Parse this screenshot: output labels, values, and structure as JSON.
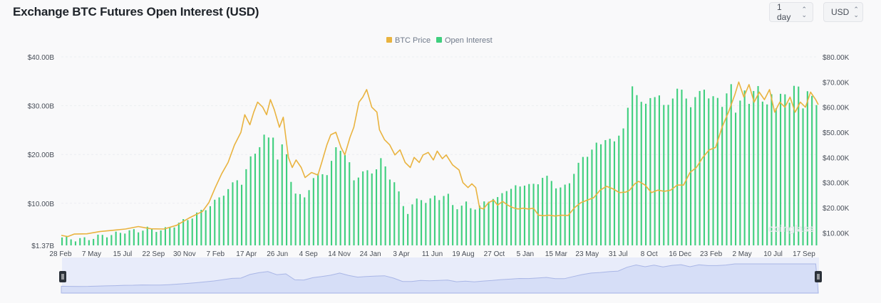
{
  "header": {
    "title": "Exchange BTC Futures Open Interest (USD)",
    "interval_select": "1 day",
    "unit_select": "USD"
  },
  "watermark": "coinglass",
  "colors": {
    "btc_price": "#e9b33f",
    "open_interest": "#3fcf7e",
    "navigator_fill": "#dde3f8",
    "navigator_line": "#a9b6e6"
  },
  "icons": {
    "select_chevron": "chevron-up-down-icon",
    "navigator_handle": "drag-handle-icon"
  },
  "chart_data": {
    "type": "bar+line",
    "title": "Exchange BTC Futures Open Interest (USD)",
    "legend": {
      "placement": "top-center",
      "entries": [
        "BTC Price",
        "Open Interest"
      ]
    },
    "grid": true,
    "x_tick_labels": [
      "28 Feb",
      "7 May",
      "15 Jul",
      "22 Sep",
      "30 Nov",
      "7 Feb",
      "17 Apr",
      "26 Jun",
      "4 Sep",
      "14 Nov",
      "24 Jan",
      "3 Apr",
      "11 Jun",
      "19 Aug",
      "27 Oct",
      "5 Jan",
      "15 Mar",
      "23 May",
      "31 Jul",
      "8 Oct",
      "16 Dec",
      "23 Feb",
      "2 May",
      "10 Jul",
      "17 Sep"
    ],
    "left_axis": {
      "name": "Open Interest",
      "ticks": [
        1.37,
        10,
        20,
        30,
        40
      ],
      "tick_labels": [
        "$1.37B",
        "$10.00B",
        "$20.00B",
        "$30.00B",
        "$40.00B"
      ],
      "range": [
        1.37,
        40
      ]
    },
    "right_axis": {
      "name": "BTC Price",
      "tick_labels": [
        "$10.00K",
        "$20.00K",
        "$30.00K",
        "$40.00K",
        "$50.00K",
        "$60.00K",
        "$70.00K",
        "$80.00K"
      ],
      "ticks": [
        10,
        20,
        30,
        40,
        50,
        60,
        70,
        80
      ],
      "range": [
        5,
        80
      ]
    },
    "series": [
      {
        "name": "Open Interest",
        "type": "bar",
        "axis": "left",
        "points": [
          [
            0,
            3.0
          ],
          [
            1,
            2.6
          ],
          [
            2,
            2.7
          ],
          [
            3,
            3.3
          ],
          [
            4,
            3.6
          ],
          [
            5,
            4.3
          ],
          [
            6,
            4.3
          ],
          [
            6.5,
            5.0
          ],
          [
            7,
            4.5
          ],
          [
            8,
            4.6
          ],
          [
            9,
            5.8
          ],
          [
            10,
            7.0
          ],
          [
            11,
            8.6
          ],
          [
            11.5,
            9.5
          ],
          [
            12,
            10.5
          ],
          [
            13,
            13.0
          ],
          [
            13.7,
            15.0
          ],
          [
            14,
            14.2
          ],
          [
            14.8,
            20.0
          ],
          [
            15.3,
            21.0
          ],
          [
            15.7,
            24.0
          ],
          [
            16,
            22.0
          ],
          [
            16.3,
            26.0
          ],
          [
            16.8,
            19.0
          ],
          [
            17.2,
            22.0
          ],
          [
            17.6,
            19.5
          ],
          [
            18,
            12.0
          ],
          [
            18.5,
            11.5
          ],
          [
            19,
            11.5
          ],
          [
            19.5,
            14.5
          ],
          [
            20,
            16.0
          ],
          [
            20.4,
            16.5
          ],
          [
            20.8,
            15.5
          ],
          [
            21.2,
            21.0
          ],
          [
            21.5,
            22.0
          ],
          [
            22,
            20.0
          ],
          [
            22.4,
            18.0
          ],
          [
            22.8,
            14.5
          ],
          [
            23.2,
            16.0
          ],
          [
            23.8,
            16.5
          ],
          [
            24.4,
            16.5
          ],
          [
            24.8,
            19.0
          ],
          [
            25.2,
            17.5
          ],
          [
            25.6,
            15.0
          ],
          [
            26,
            14.0
          ],
          [
            26.5,
            10.0
          ],
          [
            27,
            8.0
          ],
          [
            27.5,
            10.5
          ],
          [
            28,
            11.0
          ],
          [
            28.5,
            10.0
          ],
          [
            29,
            11.5
          ],
          [
            29.5,
            11.0
          ],
          [
            30,
            12.0
          ],
          [
            30.5,
            9.5
          ],
          [
            31,
            9.0
          ],
          [
            31.5,
            10.0
          ],
          [
            32,
            9.0
          ],
          [
            32.5,
            9.0
          ],
          [
            33,
            10.5
          ],
          [
            33.5,
            11.0
          ],
          [
            34,
            10.8
          ],
          [
            34.5,
            13.0
          ],
          [
            35,
            12.8
          ],
          [
            35.5,
            13.5
          ],
          [
            36,
            14.0
          ],
          [
            36.5,
            13.5
          ],
          [
            37,
            14.0
          ],
          [
            37.5,
            15.5
          ],
          [
            38,
            15.0
          ],
          [
            38.5,
            13.5
          ],
          [
            39,
            13.0
          ],
          [
            39.5,
            14.0
          ],
          [
            40,
            17.0
          ],
          [
            40.5,
            19.0
          ],
          [
            41,
            20.0
          ],
          [
            41.5,
            22.0
          ],
          [
            42,
            22.0
          ],
          [
            42.5,
            24.0
          ],
          [
            43,
            22.0
          ],
          [
            43.5,
            24.5
          ],
          [
            44,
            27.0
          ],
          [
            44.3,
            34.0
          ],
          [
            44.7,
            33.0
          ],
          [
            45,
            31.5
          ],
          [
            45.5,
            30.0
          ],
          [
            46,
            32.0
          ],
          [
            46.5,
            32.5
          ],
          [
            47,
            29.0
          ],
          [
            47.5,
            31.5
          ],
          [
            48,
            33.5
          ],
          [
            48.5,
            32.5
          ],
          [
            49,
            30.0
          ],
          [
            49.5,
            32.0
          ],
          [
            50,
            34.0
          ],
          [
            50.5,
            31.0
          ],
          [
            51,
            32.0
          ],
          [
            51.5,
            30.0
          ],
          [
            52,
            34.0
          ]
        ]
      },
      {
        "name": "BTC Price",
        "type": "line",
        "axis": "right",
        "points": [
          [
            0,
            9.0
          ],
          [
            0.5,
            8.5
          ],
          [
            1,
            9.5
          ],
          [
            2,
            9.6
          ],
          [
            3,
            10.5
          ],
          [
            4,
            11.0
          ],
          [
            5,
            11.5
          ],
          [
            6,
            12.5
          ],
          [
            7,
            11.6
          ],
          [
            8,
            11.5
          ],
          [
            9,
            13.0
          ],
          [
            10,
            16.0
          ],
          [
            11,
            18.5
          ],
          [
            11.5,
            22.0
          ],
          [
            12,
            28.0
          ],
          [
            12.5,
            33.5
          ],
          [
            13,
            38.0
          ],
          [
            13.5,
            45.0
          ],
          [
            14,
            50.0
          ],
          [
            14.3,
            57.0
          ],
          [
            14.7,
            53.0
          ],
          [
            15,
            58.0
          ],
          [
            15.3,
            62.0
          ],
          [
            15.7,
            60.0
          ],
          [
            16,
            57.0
          ],
          [
            16.3,
            63.0
          ],
          [
            16.6,
            59.0
          ],
          [
            17,
            52.0
          ],
          [
            17.3,
            56.0
          ],
          [
            17.7,
            40.0
          ],
          [
            18,
            36.0
          ],
          [
            18.3,
            39.0
          ],
          [
            18.7,
            36.0
          ],
          [
            19,
            32.0
          ],
          [
            19.5,
            34.0
          ],
          [
            20,
            33.0
          ],
          [
            20.3,
            38.0
          ],
          [
            20.7,
            45.0
          ],
          [
            21,
            49.0
          ],
          [
            21.4,
            50.0
          ],
          [
            21.8,
            44.0
          ],
          [
            22.1,
            41.0
          ],
          [
            22.5,
            48.0
          ],
          [
            22.8,
            52.0
          ],
          [
            23.2,
            62.0
          ],
          [
            23.5,
            64.0
          ],
          [
            23.8,
            67.0
          ],
          [
            24.2,
            60.0
          ],
          [
            24.6,
            58.0
          ],
          [
            24.8,
            51.0
          ],
          [
            25.2,
            47.0
          ],
          [
            25.6,
            45.0
          ],
          [
            26,
            41.0
          ],
          [
            26.4,
            43.0
          ],
          [
            26.8,
            38.0
          ],
          [
            27.2,
            36.0
          ],
          [
            27.5,
            40.0
          ],
          [
            27.9,
            38.0
          ],
          [
            28.2,
            41.0
          ],
          [
            28.6,
            42.0
          ],
          [
            29,
            39.0
          ],
          [
            29.3,
            42.5
          ],
          [
            29.7,
            39.5
          ],
          [
            30,
            41.0
          ],
          [
            30.5,
            37.0
          ],
          [
            31,
            35.0
          ],
          [
            31.3,
            30.0
          ],
          [
            31.7,
            28.0
          ],
          [
            32,
            29.5
          ],
          [
            32.3,
            28.0
          ],
          [
            32.6,
            20.0
          ],
          [
            32.9,
            19.5
          ],
          [
            33.3,
            22.0
          ],
          [
            33.7,
            23.0
          ],
          [
            34,
            21.0
          ],
          [
            34.4,
            22.5
          ],
          [
            34.8,
            21.0
          ],
          [
            35.2,
            20.0
          ],
          [
            35.6,
            19.5
          ],
          [
            36,
            19.8
          ],
          [
            36.4,
            19.5
          ],
          [
            36.8,
            19.8
          ],
          [
            37.2,
            17.0
          ],
          [
            37.6,
            16.8
          ],
          [
            38,
            17.0
          ],
          [
            38.5,
            16.7
          ],
          [
            39,
            17.0
          ],
          [
            39.5,
            16.9
          ],
          [
            40,
            20.0
          ],
          [
            40.5,
            22.0
          ],
          [
            41,
            23.0
          ],
          [
            41.5,
            24.0
          ],
          [
            42,
            27.0
          ],
          [
            42.5,
            28.5
          ],
          [
            43,
            27.5
          ],
          [
            43.5,
            26.0
          ],
          [
            44,
            26.2
          ],
          [
            44.3,
            27.0
          ],
          [
            44.7,
            29.5
          ],
          [
            45,
            30.5
          ],
          [
            45.5,
            29.0
          ],
          [
            46,
            26.0
          ],
          [
            46.5,
            27.0
          ],
          [
            47,
            26.5
          ],
          [
            47.5,
            27.0
          ],
          [
            48,
            29.0
          ],
          [
            48.5,
            29.0
          ],
          [
            49,
            34.0
          ],
          [
            49.5,
            36.0
          ],
          [
            50,
            40.0
          ],
          [
            50.5,
            43.0
          ],
          [
            51,
            44.0
          ],
          [
            51.5,
            52.0
          ],
          [
            52,
            58.0
          ],
          [
            52.5,
            65.0
          ],
          [
            52.8,
            70.0
          ],
          [
            53.2,
            64.0
          ],
          [
            53.6,
            69.0
          ],
          [
            54,
            62.0
          ],
          [
            54.4,
            66.0
          ],
          [
            54.8,
            63.0
          ],
          [
            55.2,
            67.0
          ],
          [
            55.6,
            58.0
          ],
          [
            56,
            62.0
          ],
          [
            56.4,
            60.0
          ],
          [
            56.8,
            64.0
          ],
          [
            57.2,
            58.0
          ],
          [
            57.6,
            62.0
          ],
          [
            58,
            60.0
          ],
          [
            58.4,
            66.0
          ],
          [
            58.8,
            63.0
          ],
          [
            59,
            61.0
          ]
        ]
      }
    ]
  }
}
